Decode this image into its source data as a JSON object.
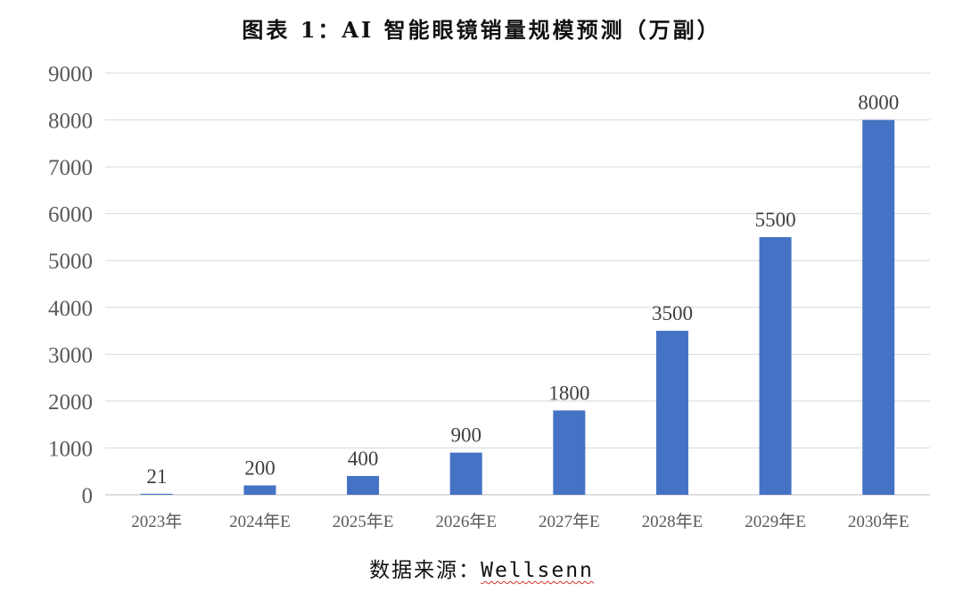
{
  "chart_data": {
    "type": "bar",
    "title": "图表 1：AI 智能眼镜销量规模预测（万副）",
    "categories": [
      "2023年",
      "2024年E",
      "2025年E",
      "2026年E",
      "2027年E",
      "2028年E",
      "2029年E",
      "2030年E"
    ],
    "values": [
      21,
      200,
      400,
      900,
      1800,
      3500,
      5500,
      8000
    ],
    "data_labels": [
      "21",
      "200",
      "400",
      "900",
      "1800",
      "3500",
      "5500",
      "8000"
    ],
    "ylim": [
      0,
      9000
    ],
    "yticks": [
      0,
      1000,
      2000,
      3000,
      4000,
      5000,
      6000,
      7000,
      8000,
      9000
    ],
    "ytick_labels": [
      "0",
      "1000",
      "2000",
      "3000",
      "4000",
      "5000",
      "6000",
      "7000",
      "8000",
      "9000"
    ],
    "grid": true,
    "legend": "none",
    "bar_color": "#4472c4",
    "xlabel": "",
    "ylabel": ""
  },
  "source": {
    "prefix": "数据来源：",
    "name": "Wellsenn"
  }
}
